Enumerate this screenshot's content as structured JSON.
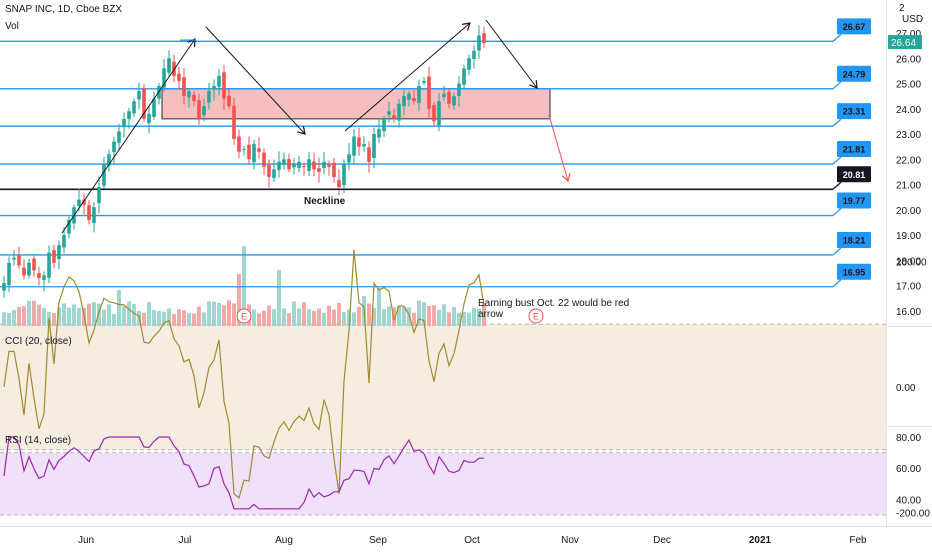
{
  "header": {
    "title": "SNAP INC, 1D, Cboe BZX",
    "vol_label": "Vol",
    "currency": "USD",
    "scale_digit": "2"
  },
  "colors": {
    "up": "#26a69a",
    "down": "#ef5350",
    "level_line": "#2196f3",
    "box_fill": "#f2a9a9",
    "cci_line": "#a08a2f",
    "rsi_line": "#9c27b0",
    "cci_band": "#f6ecdf",
    "rsi_band": "#f0e1f9"
  },
  "price_axis": {
    "ticks": [
      "27.00",
      "26.00",
      "25.00",
      "24.00",
      "23.00",
      "22.00",
      "21.00",
      "20.00",
      "19.00",
      "18.00",
      "17.00",
      "16.00"
    ],
    "last_price": "26.64"
  },
  "levels": [
    {
      "label": "26.67",
      "value": 26.67
    },
    {
      "label": "24.79",
      "value": 24.79
    },
    {
      "label": "23.31",
      "value": 23.31
    },
    {
      "label": "21.81",
      "value": 21.81
    },
    {
      "label": "20.81",
      "value": 20.81,
      "highlight": true
    },
    {
      "label": "19.77",
      "value": 19.77
    },
    {
      "label": "18.21",
      "value": 18.21
    },
    {
      "label": "16.95",
      "value": 16.95
    }
  ],
  "annotations": {
    "neckline": "Neckline",
    "note": "Earning bust Oct. 22 would be red arrow",
    "earnings_marker": "E"
  },
  "cci": {
    "label": "CCI (20, close)",
    "ticks": [
      "200.00",
      "0.00",
      "-200.00"
    ],
    "upper_band": 100,
    "lower_band": -100
  },
  "rsi": {
    "label": "RSI (14, close)",
    "ticks": [
      "80.00",
      "60.00",
      "40.00"
    ],
    "upper_band": 70,
    "lower_band": 30
  },
  "time_axis": {
    "labels": [
      "Jun",
      "Jul",
      "Aug",
      "Sep",
      "Oct",
      "Nov",
      "Dec",
      "2021",
      "Feb"
    ]
  },
  "chart_data": {
    "type": "candlestick",
    "title": "SNAP INC, 1D, Cboe BZX",
    "x": [
      "May 18",
      "May 19",
      "May 20",
      "May 21",
      "May 22",
      "May 26",
      "May 27",
      "May 28",
      "May 29",
      "Jun 1",
      "Jun 2",
      "Jun 3",
      "Jun 4",
      "Jun 5",
      "Jun 8",
      "Jun 9",
      "Jun 10",
      "Jun 11",
      "Jun 12",
      "Jun 15",
      "Jun 16",
      "Jun 17",
      "Jun 18",
      "Jun 19",
      "Jun 22",
      "Jun 23",
      "Jun 24",
      "Jun 25",
      "Jun 26",
      "Jun 29",
      "Jun 30",
      "Jul 1",
      "Jul 2",
      "Jul 6",
      "Jul 7",
      "Jul 8",
      "Jul 9",
      "Jul 10",
      "Jul 13",
      "Jul 14",
      "Jul 15",
      "Jul 16",
      "Jul 17",
      "Jul 20",
      "Jul 21",
      "Jul 22",
      "Jul 23",
      "Jul 24",
      "Jul 27",
      "Jul 28",
      "Jul 29",
      "Jul 30",
      "Jul 31",
      "Aug 3",
      "Aug 4",
      "Aug 5",
      "Aug 6",
      "Aug 7",
      "Aug 10",
      "Aug 11",
      "Aug 12",
      "Aug 13",
      "Aug 14",
      "Aug 17",
      "Aug 18",
      "Aug 19",
      "Aug 20",
      "Aug 21",
      "Aug 24",
      "Aug 25",
      "Aug 26",
      "Aug 27",
      "Aug 28",
      "Aug 31",
      "Sep 1",
      "Sep 2",
      "Sep 3",
      "Sep 4",
      "Sep 8",
      "Sep 9",
      "Sep 10",
      "Sep 11",
      "Sep 14",
      "Sep 15",
      "Sep 16",
      "Sep 17",
      "Sep 18",
      "Sep 21",
      "Sep 22",
      "Sep 23",
      "Sep 24",
      "Sep 25",
      "Sep 28",
      "Sep 29",
      "Sep 30",
      "Oct 1",
      "Oct 2"
    ],
    "close": [
      17.1,
      17.9,
      18.1,
      17.8,
      17.4,
      17.9,
      17.6,
      17.3,
      17.4,
      18.3,
      17.9,
      18.6,
      19.0,
      19.6,
      20.1,
      20.4,
      20.2,
      19.6,
      20.1,
      20.9,
      21.8,
      22.2,
      22.7,
      23.1,
      23.6,
      23.9,
      24.3,
      24.7,
      23.6,
      23.8,
      24.4,
      24.9,
      25.6,
      26.0,
      25.3,
      25.1,
      24.5,
      24.7,
      24.3,
      23.6,
      24.1,
      24.7,
      24.9,
      25.3,
      24.4,
      24.1,
      22.8,
      22.3,
      22.4,
      22.0,
      22.6,
      22.3,
      21.7,
      21.3,
      21.6,
      21.9,
      22.0,
      21.6,
      21.8,
      21.9,
      21.7,
      22.0,
      21.6,
      21.5,
      21.9,
      21.7,
      21.3,
      20.9,
      21.8,
      22.2,
      22.9,
      22.5,
      22.6,
      21.9,
      23.0,
      23.2,
      23.6,
      23.9,
      23.6,
      24.2,
      24.5,
      24.6,
      24.3,
      24.9,
      25.1,
      24.0,
      23.5,
      24.3,
      24.6,
      24.2,
      24.5,
      25.0,
      25.6,
      26.0,
      26.3,
      26.9,
      26.6
    ],
    "ylim": [
      15.5,
      27.6
    ],
    "horizontal_levels": [
      26.67,
      24.79,
      23.31,
      21.81,
      20.81,
      19.77,
      18.21,
      16.95
    ],
    "resistance_zone": [
      23.6,
      24.79
    ],
    "indicators": [
      "Vol",
      "CCI (20, close)",
      "RSI (14, close)"
    ]
  }
}
